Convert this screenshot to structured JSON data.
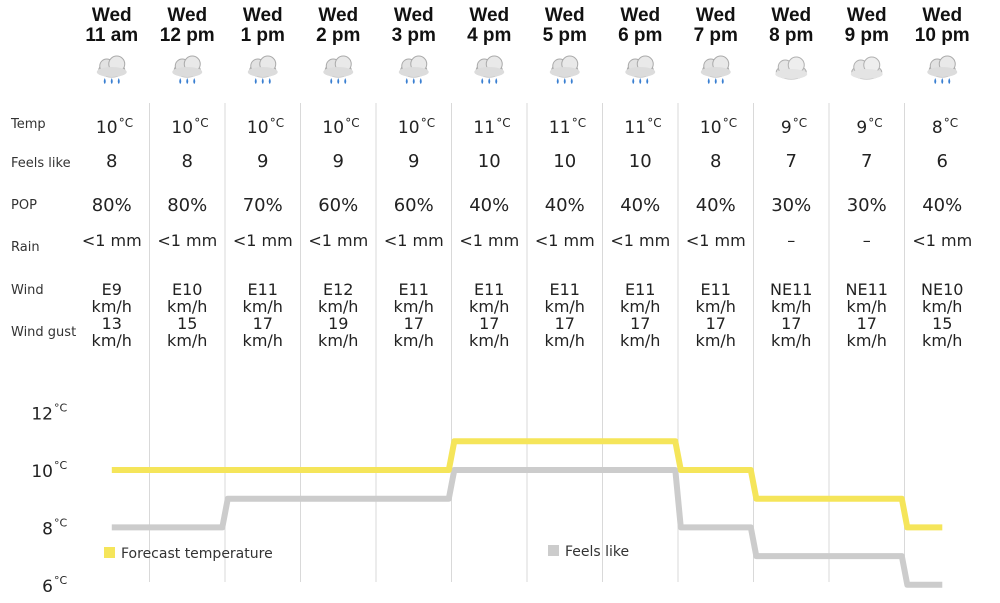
{
  "chart_data": {
    "type": "line",
    "columns": [
      {
        "day": "Wed",
        "time": "11 am",
        "icon": "rain-cloud-icon",
        "temp": 10,
        "feels": 8,
        "pop": "80%",
        "rain": "<1 mm",
        "wind_dir": "E9",
        "wind_unit": "km/h",
        "gust": "13",
        "gust_unit": "km/h"
      },
      {
        "day": "Wed",
        "time": "12 pm",
        "icon": "rain-cloud-icon",
        "temp": 10,
        "feels": 8,
        "pop": "80%",
        "rain": "<1 mm",
        "wind_dir": "E10",
        "wind_unit": "km/h",
        "gust": "15",
        "gust_unit": "km/h"
      },
      {
        "day": "Wed",
        "time": "1 pm",
        "icon": "rain-cloud-icon",
        "temp": 10,
        "feels": 9,
        "pop": "70%",
        "rain": "<1 mm",
        "wind_dir": "E11",
        "wind_unit": "km/h",
        "gust": "17",
        "gust_unit": "km/h"
      },
      {
        "day": "Wed",
        "time": "2 pm",
        "icon": "rain-cloud-icon",
        "temp": 10,
        "feels": 9,
        "pop": "60%",
        "rain": "<1 mm",
        "wind_dir": "E12",
        "wind_unit": "km/h",
        "gust": "19",
        "gust_unit": "km/h"
      },
      {
        "day": "Wed",
        "time": "3 pm",
        "icon": "rain-cloud-icon",
        "temp": 10,
        "feels": 9,
        "pop": "60%",
        "rain": "<1 mm",
        "wind_dir": "E11",
        "wind_unit": "km/h",
        "gust": "17",
        "gust_unit": "km/h"
      },
      {
        "day": "Wed",
        "time": "4 pm",
        "icon": "rain-cloud-icon",
        "temp": 11,
        "feels": 10,
        "pop": "40%",
        "rain": "<1 mm",
        "wind_dir": "E11",
        "wind_unit": "km/h",
        "gust": "17",
        "gust_unit": "km/h"
      },
      {
        "day": "Wed",
        "time": "5 pm",
        "icon": "rain-cloud-icon",
        "temp": 11,
        "feels": 10,
        "pop": "40%",
        "rain": "<1 mm",
        "wind_dir": "E11",
        "wind_unit": "km/h",
        "gust": "17",
        "gust_unit": "km/h"
      },
      {
        "day": "Wed",
        "time": "6 pm",
        "icon": "rain-cloud-icon",
        "temp": 11,
        "feels": 10,
        "pop": "40%",
        "rain": "<1 mm",
        "wind_dir": "E11",
        "wind_unit": "km/h",
        "gust": "17",
        "gust_unit": "km/h"
      },
      {
        "day": "Wed",
        "time": "7 pm",
        "icon": "rain-cloud-icon",
        "temp": 10,
        "feels": 8,
        "pop": "40%",
        "rain": "<1 mm",
        "wind_dir": "E11",
        "wind_unit": "km/h",
        "gust": "17",
        "gust_unit": "km/h"
      },
      {
        "day": "Wed",
        "time": "8 pm",
        "icon": "cloud-icon",
        "temp": 9,
        "feels": 7,
        "pop": "30%",
        "rain": "–",
        "wind_dir": "NE11",
        "wind_unit": "km/h",
        "gust": "17",
        "gust_unit": "km/h"
      },
      {
        "day": "Wed",
        "time": "9 pm",
        "icon": "cloud-icon",
        "temp": 9,
        "feels": 7,
        "pop": "30%",
        "rain": "–",
        "wind_dir": "NE11",
        "wind_unit": "km/h",
        "gust": "17",
        "gust_unit": "km/h"
      },
      {
        "day": "Wed",
        "time": "10 pm",
        "icon": "rain-cloud-icon",
        "temp": 8,
        "feels": 6,
        "pop": "40%",
        "rain": "<1 mm",
        "wind_dir": "NE10",
        "wind_unit": "km/h",
        "gust": "15",
        "gust_unit": "km/h"
      }
    ],
    "row_labels": [
      "Temp",
      "Feels like",
      "POP",
      "Rain",
      "Wind",
      "Wind gust"
    ],
    "temp_unit": "°C",
    "series": [
      {
        "name": "Forecast temperature",
        "key": "temp",
        "color": "#f5e55a"
      },
      {
        "name": "Feels like",
        "key": "feels",
        "color": "#cccccc"
      }
    ],
    "y_ticks": [
      12,
      10,
      8,
      6
    ],
    "y_unit": "°C",
    "ylim": [
      6,
      12
    ]
  }
}
